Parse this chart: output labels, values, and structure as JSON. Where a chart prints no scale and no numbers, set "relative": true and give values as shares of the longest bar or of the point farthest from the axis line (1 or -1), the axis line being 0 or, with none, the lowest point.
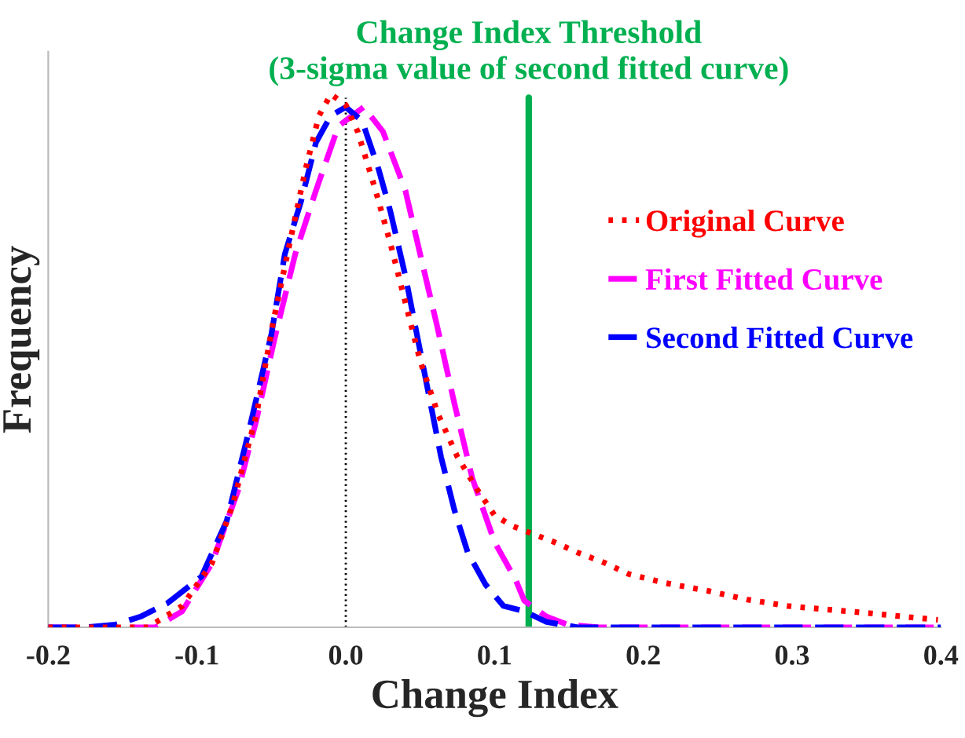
{
  "chart_data": {
    "type": "line",
    "relative": true,
    "xlabel": "Change Index",
    "ylabel": "Frequency",
    "xlim": [
      -0.2,
      0.4
    ],
    "xticks": [
      {
        "value": -0.2,
        "label": "-0.2"
      },
      {
        "value": -0.1,
        "label": "-0.1"
      },
      {
        "value": 0.0,
        "label": "0.0"
      },
      {
        "value": 0.1,
        "label": "0.1"
      },
      {
        "value": 0.2,
        "label": "0.2"
      },
      {
        "value": 0.3,
        "label": "0.3"
      },
      {
        "value": 0.4,
        "label": "0.4"
      }
    ],
    "grid": false,
    "legend": "right",
    "marker": "none",
    "ref_lines": [
      {
        "axis": "x",
        "value": 0.123,
        "label": "Change Index Threshold\n(3-sigma value of second fitted curve)",
        "color": "#00b050",
        "line_style": "solid"
      },
      {
        "axis": "x",
        "value": 0.0,
        "label": null,
        "color": "#000000",
        "line_style": "dotted"
      }
    ],
    "series": [
      {
        "name": "Original Curve",
        "color": "#ff0000",
        "line_style": "dotted",
        "x": [
          -0.2,
          -0.16,
          -0.133,
          -0.11,
          -0.09,
          -0.076,
          -0.06,
          -0.049,
          -0.037,
          -0.027,
          -0.018,
          -0.01,
          0.0,
          0.008,
          0.02,
          0.03,
          0.04,
          0.05,
          0.062,
          0.075,
          0.088,
          0.1,
          0.112,
          0.125,
          0.14,
          0.156,
          0.175,
          0.19,
          0.215,
          0.244,
          0.27,
          0.297,
          0.325,
          0.35,
          0.375,
          0.398
        ],
        "values": [
          0.0,
          0.0,
          0.0,
          0.04,
          0.12,
          0.23,
          0.4,
          0.57,
          0.73,
          0.86,
          0.96,
          1.0,
          0.98,
          0.93,
          0.82,
          0.72,
          0.61,
          0.5,
          0.4,
          0.32,
          0.26,
          0.21,
          0.19,
          0.176,
          0.16,
          0.14,
          0.12,
          0.1,
          0.083,
          0.068,
          0.052,
          0.04,
          0.033,
          0.027,
          0.02,
          0.014
        ]
      },
      {
        "name": "First Fitted Curve",
        "color": "#ff00ff",
        "line_style": "dashed",
        "x": [
          -0.2,
          -0.16,
          -0.128,
          -0.11,
          -0.09,
          -0.072,
          -0.06,
          -0.048,
          -0.034,
          -0.02,
          -0.005,
          0.012,
          0.025,
          0.04,
          0.05,
          0.061,
          0.073,
          0.085,
          0.1,
          0.114,
          0.12,
          0.135,
          0.149,
          0.17,
          0.2,
          0.25,
          0.3,
          0.35,
          0.4
        ],
        "values": [
          0.0,
          0.0,
          0.0,
          0.03,
          0.12,
          0.26,
          0.39,
          0.54,
          0.7,
          0.82,
          0.94,
          0.976,
          0.93,
          0.82,
          0.7,
          0.57,
          0.42,
          0.28,
          0.16,
          0.09,
          0.05,
          0.02,
          0.005,
          0.0,
          0.0,
          0.0,
          0.0,
          0.0,
          0.0
        ]
      },
      {
        "name": "Second Fitted Curve",
        "color": "#0000ff",
        "line_style": "dashed",
        "x": [
          -0.2,
          -0.175,
          -0.155,
          -0.138,
          -0.12,
          -0.097,
          -0.08,
          -0.065,
          -0.05,
          -0.041,
          -0.03,
          -0.02,
          -0.01,
          0.0,
          0.011,
          0.022,
          0.03,
          0.04,
          0.052,
          0.064,
          0.073,
          0.082,
          0.094,
          0.106,
          0.12,
          0.135,
          0.156,
          0.2,
          0.25,
          0.3,
          0.35,
          0.4
        ],
        "values": [
          0.0,
          0.0,
          0.005,
          0.02,
          0.045,
          0.095,
          0.2,
          0.37,
          0.55,
          0.7,
          0.8,
          0.91,
          0.96,
          0.976,
          0.95,
          0.86,
          0.78,
          0.66,
          0.49,
          0.32,
          0.22,
          0.14,
          0.08,
          0.04,
          0.03,
          0.01,
          0.0,
          0.0,
          0.0,
          0.0,
          0.0,
          0.0
        ]
      }
    ]
  }
}
